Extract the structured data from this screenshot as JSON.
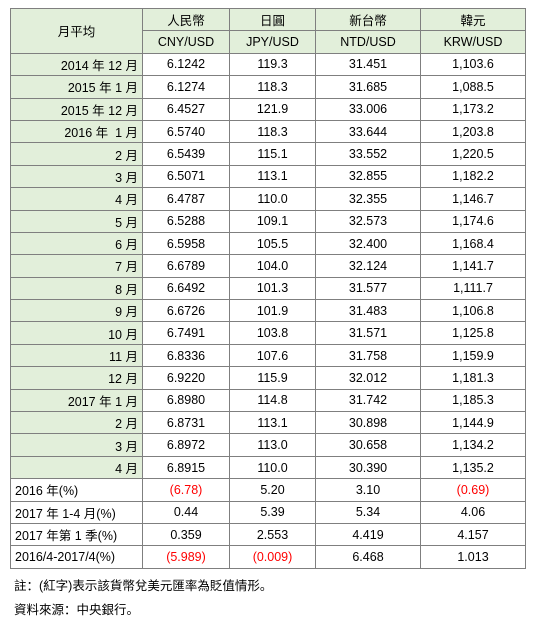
{
  "table": {
    "header": {
      "corner": "月平均",
      "names": [
        "人民幣",
        "日圓",
        "新台幣",
        "韓元"
      ],
      "codes": [
        "CNY/USD",
        "JPY/USD",
        "NTD/USD",
        "KRW/USD"
      ]
    },
    "rows": [
      [
        "2014 年 12 月",
        "6.1242",
        "119.3",
        "31.451",
        "1,103.6"
      ],
      [
        "2015 年 1 月",
        "6.1274",
        "118.3",
        "31.685",
        "1,088.5"
      ],
      [
        "2015 年 12 月",
        "6.4527",
        "121.9",
        "33.006",
        "1,173.2"
      ],
      [
        "2016 年  1 月",
        "6.5740",
        "118.3",
        "33.644",
        "1,203.8"
      ],
      [
        "2 月",
        "6.5439",
        "115.1",
        "33.552",
        "1,220.5"
      ],
      [
        "3 月",
        "6.5071",
        "113.1",
        "32.855",
        "1,182.2"
      ],
      [
        "4 月",
        "6.4787",
        "110.0",
        "32.355",
        "1,146.7"
      ],
      [
        "5 月",
        "6.5288",
        "109.1",
        "32.573",
        "1,174.6"
      ],
      [
        "6 月",
        "6.5958",
        "105.5",
        "32.400",
        "1,168.4"
      ],
      [
        "7 月",
        "6.6789",
        "104.0",
        "32.124",
        "1,141.7"
      ],
      [
        "8 月",
        "6.6492",
        "101.3",
        "31.577",
        "1,111.7"
      ],
      [
        "9 月",
        "6.6726",
        "101.9",
        "31.483",
        "1,106.8"
      ],
      [
        "10 月",
        "6.7491",
        "103.8",
        "31.571",
        "1,125.8"
      ],
      [
        "11 月",
        "6.8336",
        "107.6",
        "31.758",
        "1,159.9"
      ],
      [
        "12 月",
        "6.9220",
        "115.9",
        "32.012",
        "1,181.3"
      ],
      [
        "2017 年 1 月",
        "6.8980",
        "114.8",
        "31.742",
        "1,185.3"
      ],
      [
        "2 月",
        "6.8731",
        "113.1",
        "30.898",
        "1,144.9"
      ],
      [
        "3 月",
        "6.8972",
        "113.0",
        "30.658",
        "1,134.2"
      ],
      [
        "4 月",
        "6.8915",
        "110.0",
        "30.390",
        "1,135.2"
      ]
    ],
    "summary": [
      [
        "2016 年(%)",
        "(6.78)",
        "5.20",
        "3.10",
        "(0.69)"
      ],
      [
        "2017 年 1-4 月(%)",
        "0.44",
        "5.39",
        "5.34",
        "4.06"
      ],
      [
        "2017 年第 1 季(%)",
        "0.359",
        "2.553",
        "4.419",
        "4.157"
      ],
      [
        "2016/4-2017/4(%)",
        "(5.989)",
        "(0.009)",
        "6.468",
        "1.013"
      ]
    ],
    "negative_color": "#ff0000",
    "notes": [
      "註：(紅字)表示該貨幣兌美元匯率為貶值情形。",
      "資料來源：中央銀行。"
    ]
  }
}
